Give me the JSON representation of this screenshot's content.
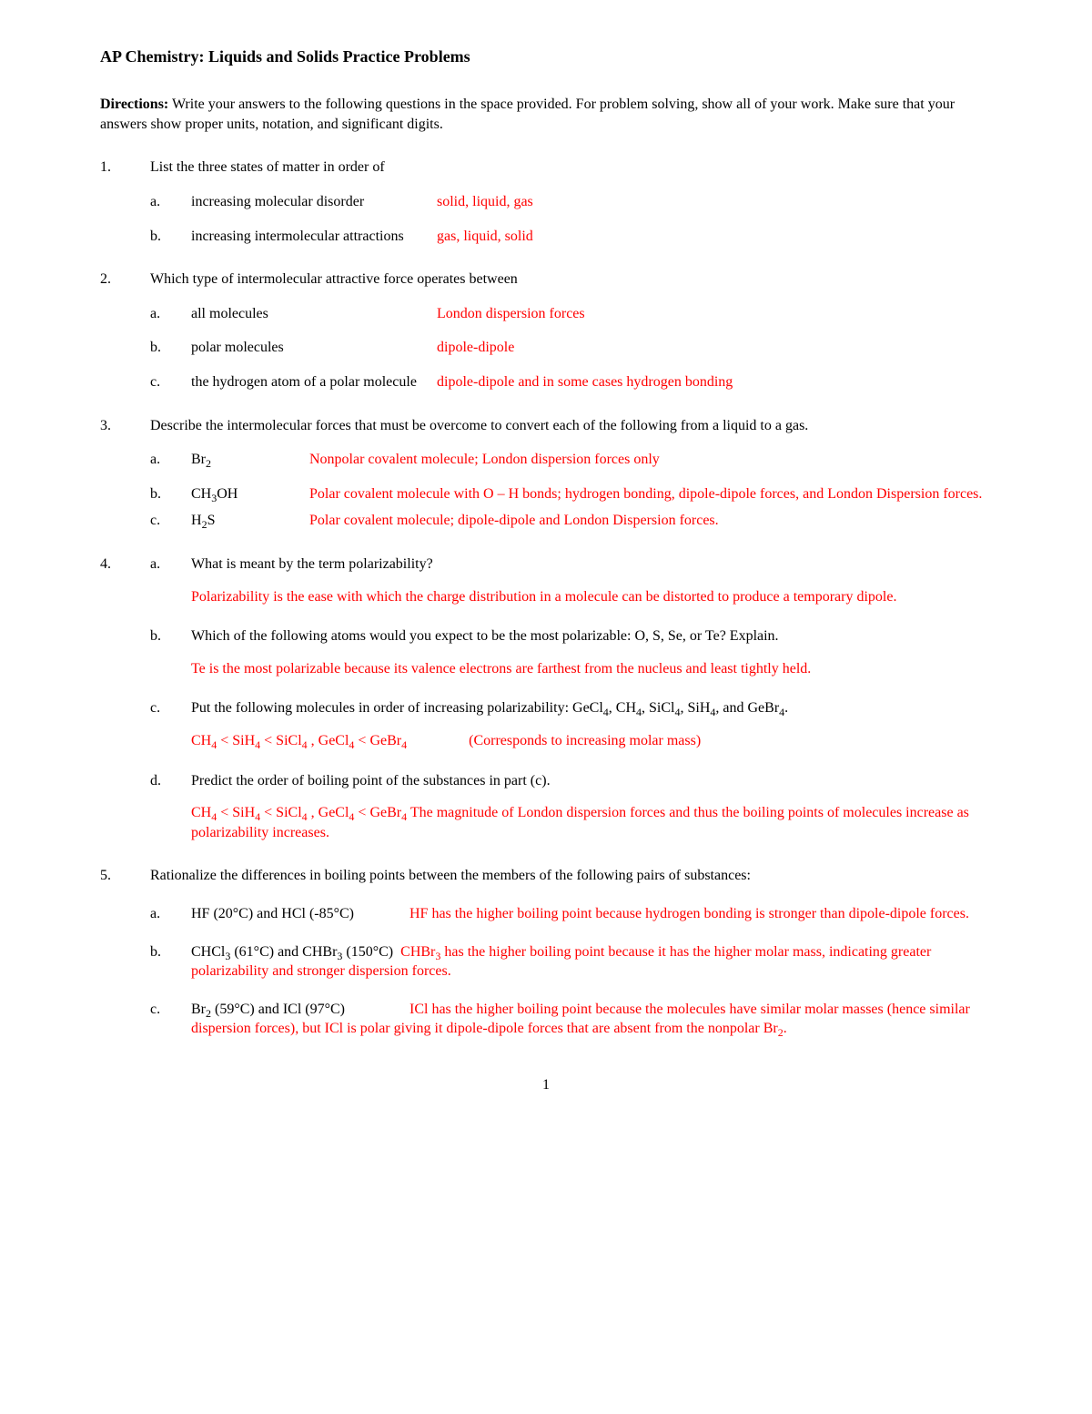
{
  "title": "AP Chemistry:  Liquids and Solids Practice Problems",
  "directions_label": "Directions:",
  "directions_text": "  Write your answers to the following questions in the space provided.  For problem solving, show all of your work.  Make sure that your answers show proper units, notation, and significant digits.",
  "q1": {
    "num": "1.",
    "prompt": "List the three states of matter in order of",
    "a_letter": "a.",
    "a_prompt": "increasing molecular disorder",
    "a_ans": "solid, liquid, gas",
    "b_letter": "b.",
    "b_prompt": "increasing intermolecular attractions",
    "b_ans": "gas, liquid, solid"
  },
  "q2": {
    "num": "2.",
    "prompt": "Which type of intermolecular attractive force operates between",
    "a_letter": "a.",
    "a_prompt": "all molecules",
    "a_ans": "London dispersion forces",
    "b_letter": "b.",
    "b_prompt": "polar molecules",
    "b_ans": "dipole-dipole",
    "c_letter": "c.",
    "c_prompt": "the hydrogen atom of a polar molecule",
    "c_ans": "dipole-dipole and in some cases hydrogen bonding"
  },
  "q3": {
    "num": "3.",
    "prompt": "Describe the intermolecular forces that must be overcome to convert each of the following from a liquid to a gas.",
    "a_letter": "a.",
    "a_mol_html": "Br<sub>2</sub>",
    "a_ans": "Nonpolar covalent molecule; London dispersion forces only",
    "b_letter": "b.",
    "b_mol_html": "CH<sub>3</sub>OH",
    "b_ans": "Polar covalent molecule with O – H bonds; hydrogen bonding, dipole-dipole forces, and London Dispersion forces.",
    "c_letter": "c.",
    "c_mol_html": "H<sub>2</sub>S",
    "c_ans": "Polar covalent molecule; dipole-dipole and London Dispersion forces."
  },
  "q4": {
    "num": "4.",
    "a_letter": "a.",
    "a_prompt": "What is meant by the term polarizability?",
    "a_ans": "Polarizability is the ease with which the charge distribution in a molecule can be distorted to produce a temporary dipole.",
    "b_letter": "b.",
    "b_prompt": "Which of the following atoms would you expect to be the most polarizable:  O, S, Se, or Te?  Explain.",
    "b_ans": "Te is the most polarizable because its valence electrons are farthest from the nucleus and least tightly held.",
    "c_letter": "c.",
    "c_prompt_html": "Put the following molecules in order of increasing polarizability:  GeCl<sub>4</sub>, CH<sub>4</sub>, SiCl<sub>4</sub>, SiH<sub>4</sub>, and GeBr<sub>4</sub>.",
    "c_ans_order_html": "CH<sub>4</sub> < SiH<sub>4</sub> < SiCl<sub>4</sub> , GeCl<sub>4</sub> < GeBr<sub>4</sub>",
    "c_ans_note": "(Corresponds to increasing molar mass)",
    "d_letter": "d.",
    "d_prompt": "Predict the order of boiling point of the substances in part (c).",
    "d_ans_order_html": "CH<sub>4</sub> < SiH<sub>4</sub> < SiCl<sub>4</sub> , GeCl<sub>4</sub> < GeBr<sub>4</sub>",
    "d_ans_rest": "   The magnitude of London dispersion forces and thus the boiling points of molecules increase as polarizability increases."
  },
  "q5": {
    "num": "5.",
    "prompt": "Rationalize the differences in boiling points between the members of the following pairs of substances:",
    "a_letter": "a.",
    "a_pair": "HF (20°C) and HCl (-85°C)",
    "a_ans": "HF has the higher boiling point because hydrogen bonding is stronger than dipole-dipole forces.",
    "b_letter": "b.",
    "b_pair_html": "CHCl<sub>3</sub> (61°C) and CHBr<sub>3</sub> (150°C)",
    "b_ans_html": "CHBr<sub>3</sub> has the higher boiling point because it has the higher molar mass, indicating greater polarizability and stronger dispersion forces.",
    "c_letter": "c.",
    "c_pair_html": "Br<sub>2</sub> (59°C) and ICl (97°C)",
    "c_ans_html": "ICl has the higher boiling point because the molecules have similar molar masses (hence similar dispersion forces), but ICl is polar giving it dipole-dipole forces that are absent from the nonpolar Br<sub>2</sub>."
  },
  "page_number": "1"
}
